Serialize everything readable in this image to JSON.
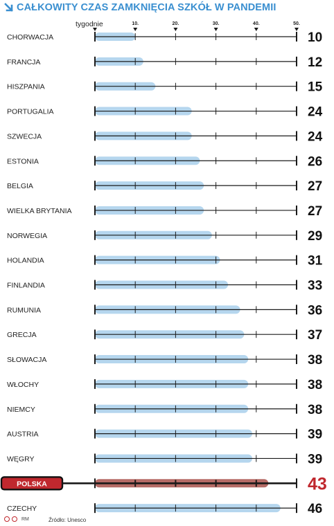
{
  "title": "CAŁKOWITY CZAS ZAMKNIĘCIA SZKÓŁ W PANDEMII",
  "source": "Źródło: Unesco",
  "logo": "RM",
  "colors": {
    "title": "#3a8fd0",
    "bar": "#b5d6ee",
    "highlight_bar": "#b56b66",
    "highlight_label_bg": "#c0282e",
    "highlight_value": "#c0282e",
    "axis": "#1a1a1a"
  },
  "chart_data": {
    "type": "bar",
    "orientation": "horizontal",
    "unit_label": "tygodnie",
    "xlim": [
      0,
      50
    ],
    "ticks": [
      10,
      20,
      30,
      40,
      50
    ],
    "tick_labels": [
      "10.",
      "20.",
      "30.",
      "40.",
      "50."
    ],
    "categories": [
      "CHORWACJA",
      "FRANCJA",
      "HISZPANIA",
      "PORTUGALIA",
      "SZWECJA",
      "ESTONIA",
      "BELGIA",
      "WIELKA BRYTANIA",
      "NORWEGIA",
      "HOLANDIA",
      "FINLANDIA",
      "RUMUNIA",
      "GRECJA",
      "SŁOWACJA",
      "WŁOCHY",
      "NIEMCY",
      "AUSTRIA",
      "WĘGRY",
      "POLSKA",
      "CZECHY"
    ],
    "values": [
      10,
      12,
      15,
      24,
      24,
      26,
      27,
      27,
      29,
      31,
      33,
      36,
      37,
      38,
      38,
      38,
      39,
      39,
      43,
      46
    ],
    "value_labels": [
      "10",
      "12",
      "15",
      "24",
      "24",
      "26",
      "27",
      "27",
      "29",
      "31",
      "33",
      "36",
      "37",
      "38",
      "38",
      "38",
      "39",
      "39",
      "43",
      "46"
    ],
    "highlight": "POLSKA"
  }
}
